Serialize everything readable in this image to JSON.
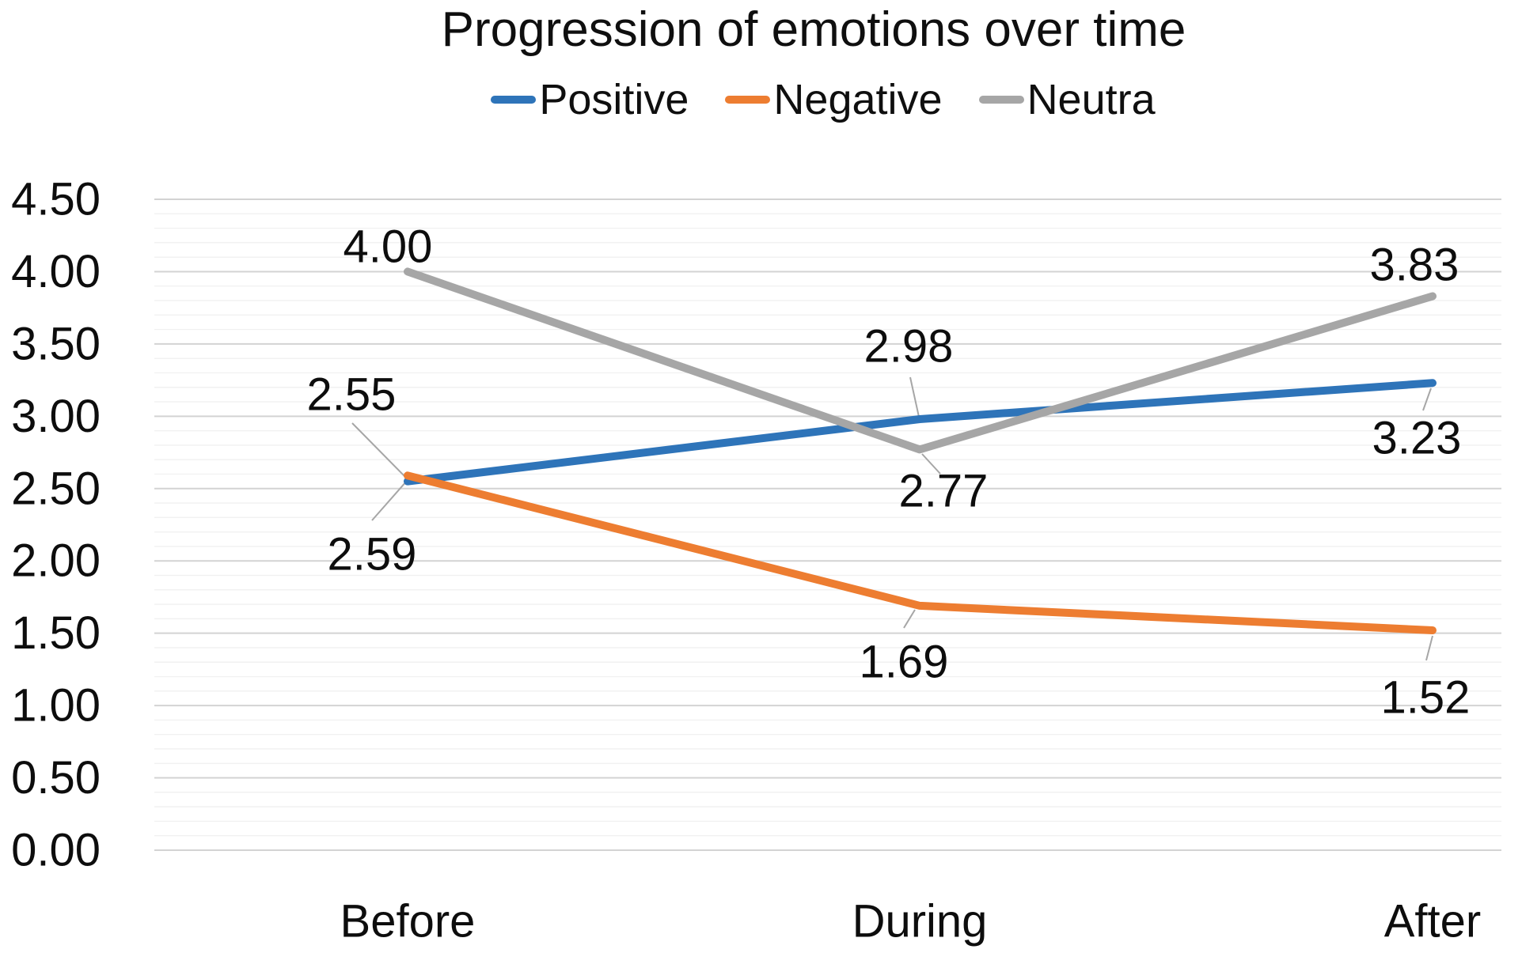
{
  "chart_data": {
    "type": "line",
    "title": "Progression of emotions over time",
    "categories": [
      "Before",
      "During",
      "After"
    ],
    "series": [
      {
        "name": "Positive",
        "color": "#2E74B9",
        "values": [
          2.55,
          2.98,
          3.23
        ],
        "labels": [
          "2.55",
          "2.98",
          "3.23"
        ]
      },
      {
        "name": "Negative",
        "color": "#ED7D31",
        "values": [
          2.59,
          1.69,
          1.52
        ],
        "labels": [
          "2.59",
          "1.69",
          "1.52"
        ]
      },
      {
        "name": "Neutra",
        "color": "#A6A6A6",
        "values": [
          4.0,
          2.77,
          3.83
        ],
        "labels": [
          "4.00",
          "2.77",
          "3.83"
        ]
      }
    ],
    "y_axis": {
      "min": 0.0,
      "max": 4.5,
      "major_step": 0.5,
      "minor_step": 0.1,
      "tick_labels": [
        "0.00",
        "0.50",
        "1.00",
        "1.50",
        "2.00",
        "2.50",
        "3.00",
        "3.50",
        "4.00",
        "4.50"
      ]
    },
    "legend_position": "top",
    "grid": true,
    "colors": {
      "grid_major": "#D3D3D3",
      "grid_minor": "#F1F1F1",
      "leader": "#A6A6A6",
      "text": "#0d0d0d"
    }
  }
}
